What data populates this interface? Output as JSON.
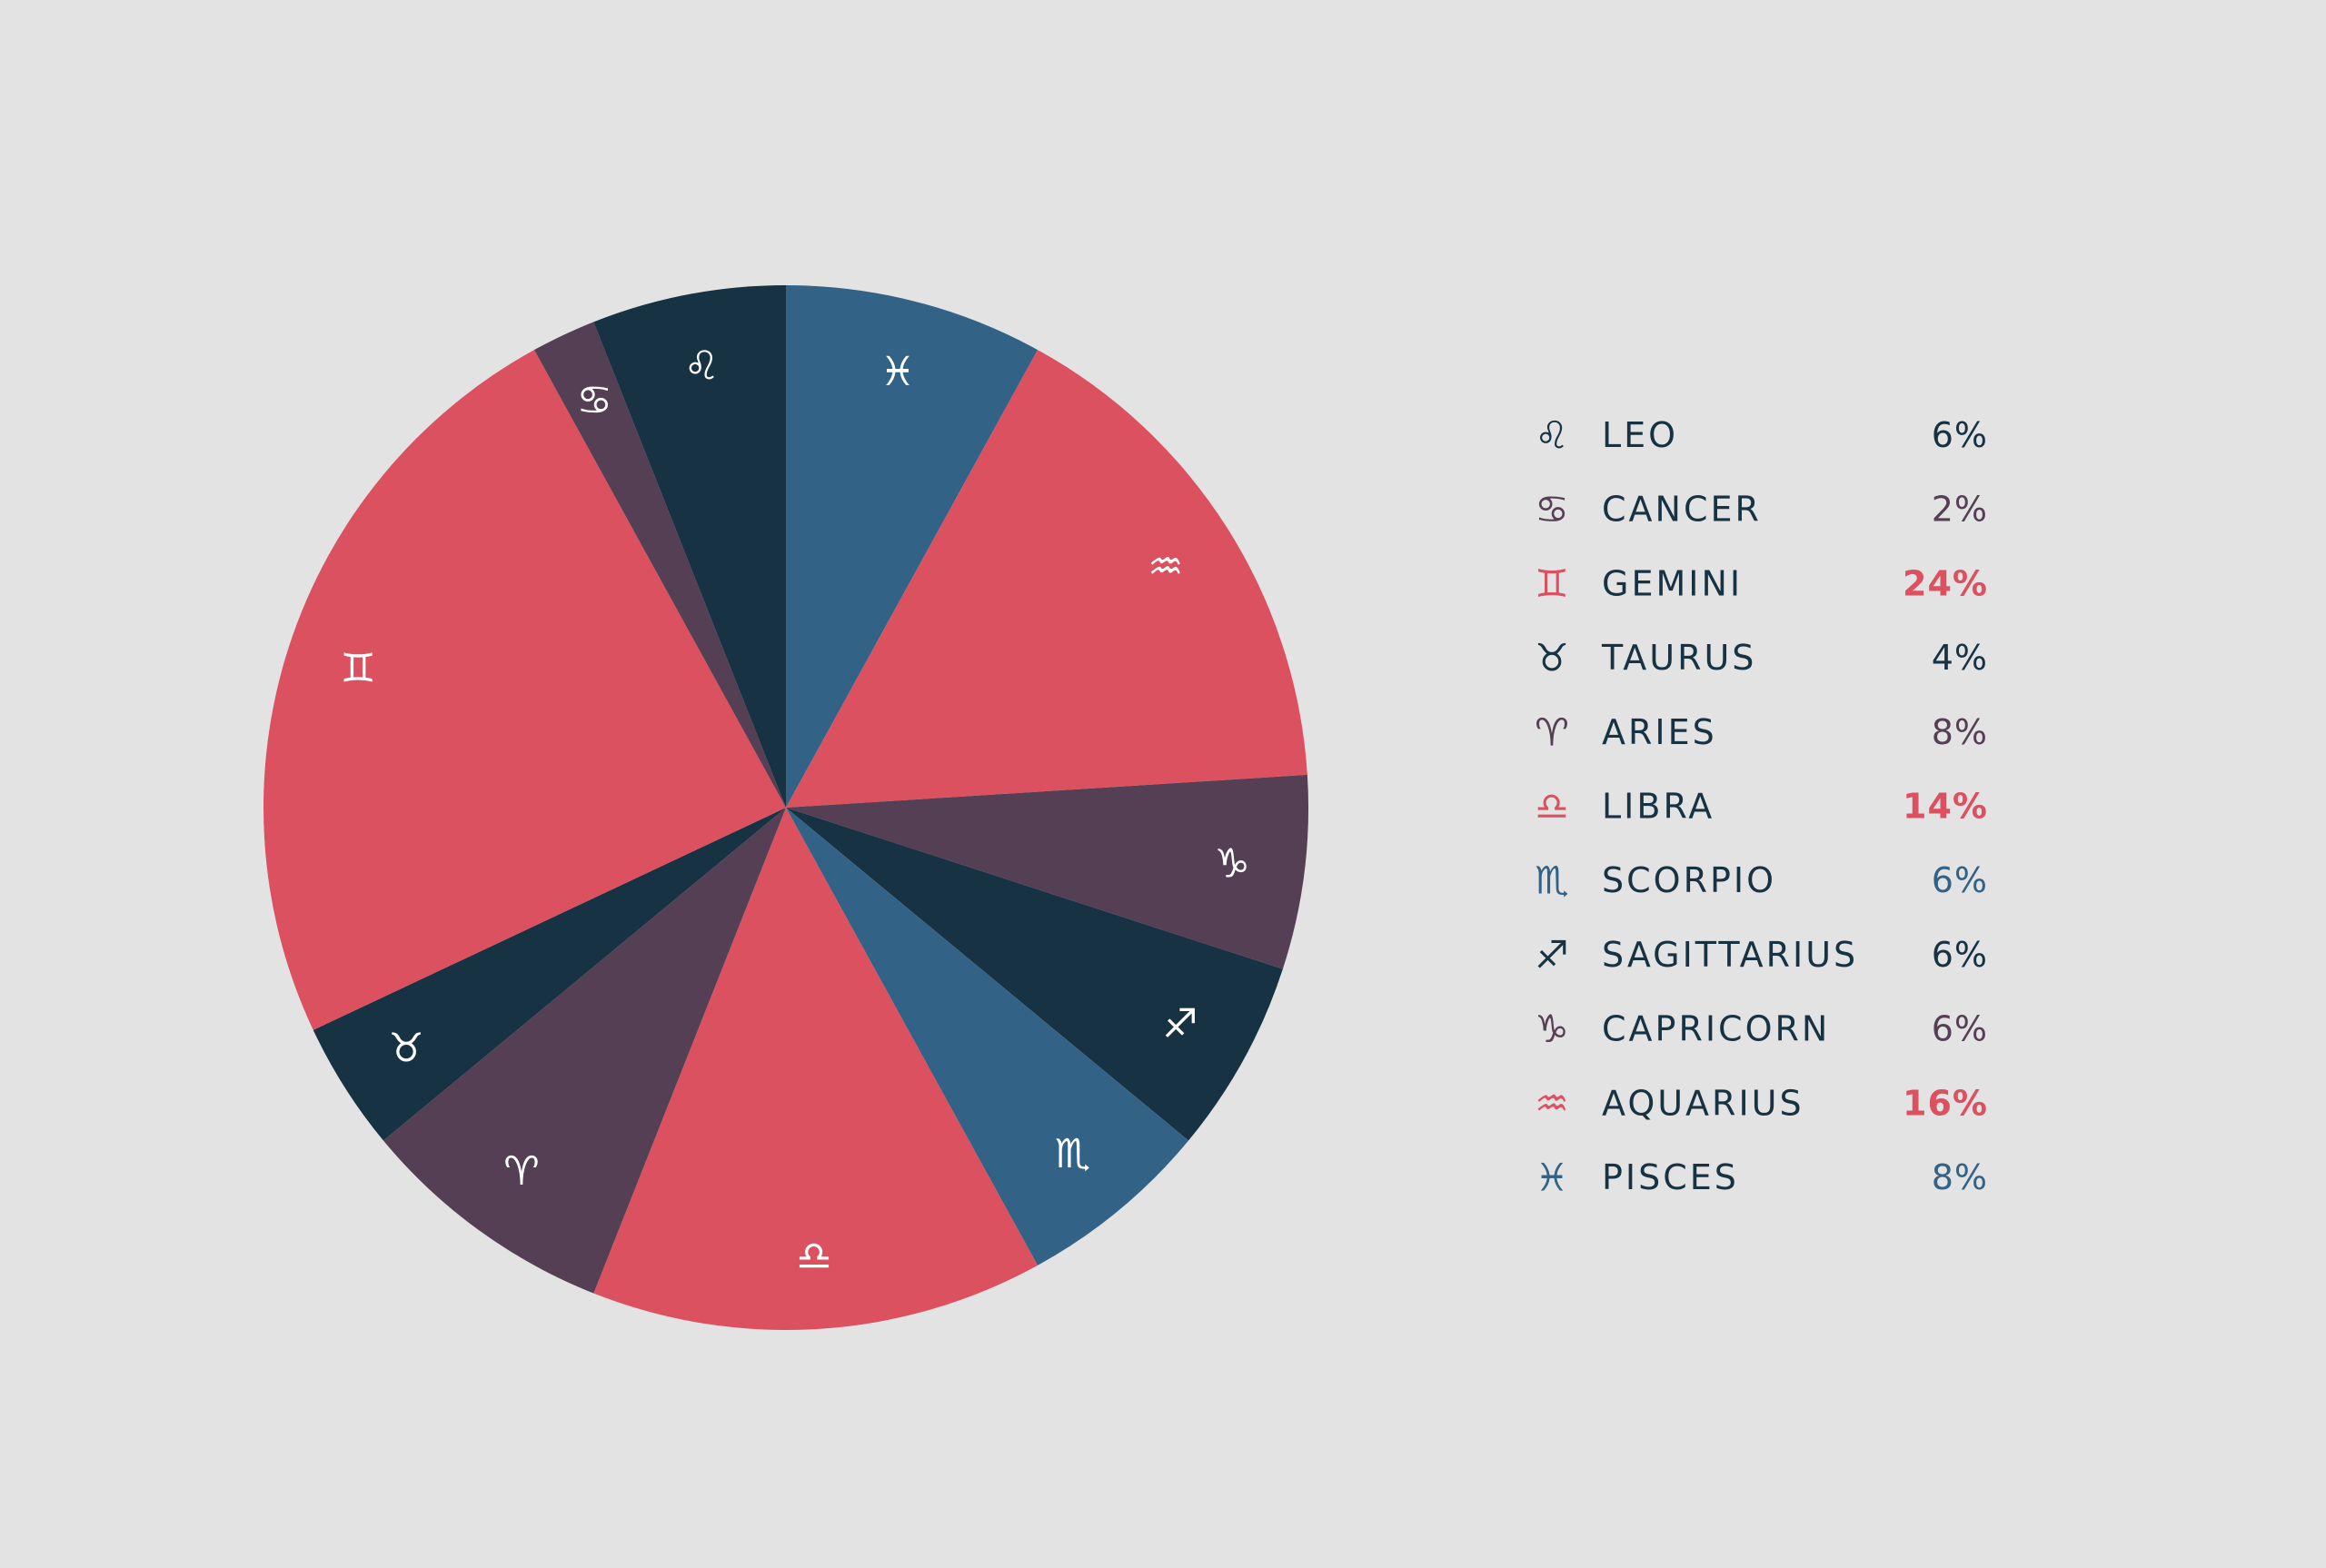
{
  "colors": {
    "background": "#e4e3e4",
    "red": "#dc5160",
    "navy": "#173242",
    "plum": "#553f54",
    "blue": "#326387",
    "glyph_on_slice": "#ffffff"
  },
  "chart_data": {
    "type": "pie",
    "start": "12 o'clock, clockwise",
    "slices": [
      {
        "label": "PISCES",
        "symbol": "♓︎",
        "icon": "pisces-icon",
        "value": 8,
        "display": "8%",
        "color": "#326387",
        "highlight": false
      },
      {
        "label": "AQUARIUS",
        "symbol": "♒︎",
        "icon": "aquarius-icon",
        "value": 16,
        "display": "16%",
        "color": "#dc5160",
        "highlight": true
      },
      {
        "label": "CAPRICORN",
        "symbol": "♑︎",
        "icon": "capricorn-icon",
        "value": 6,
        "display": "6%",
        "color": "#553f54",
        "highlight": false
      },
      {
        "label": "SAGITTARIUS",
        "symbol": "♐︎",
        "icon": "sagittarius-icon",
        "value": 6,
        "display": "6%",
        "color": "#173242",
        "highlight": false
      },
      {
        "label": "SCORPIO",
        "symbol": "♏︎",
        "icon": "scorpio-icon",
        "value": 6,
        "display": "6%",
        "color": "#326387",
        "highlight": false
      },
      {
        "label": "LIBRA",
        "symbol": "♎︎",
        "icon": "libra-icon",
        "value": 14,
        "display": "14%",
        "color": "#dc5160",
        "highlight": true
      },
      {
        "label": "ARIES",
        "symbol": "♈︎",
        "icon": "aries-icon",
        "value": 8,
        "display": "8%",
        "color": "#553f54",
        "highlight": false
      },
      {
        "label": "TAURUS",
        "symbol": "♉︎",
        "icon": "taurus-icon",
        "value": 4,
        "display": "4%",
        "color": "#173242",
        "highlight": false
      },
      {
        "label": "GEMINI",
        "symbol": "♊︎",
        "icon": "gemini-icon",
        "value": 24,
        "display": "24%",
        "color": "#dc5160",
        "highlight": true
      },
      {
        "label": "CANCER",
        "symbol": "♋︎",
        "icon": "cancer-icon",
        "value": 2,
        "display": "2%",
        "color": "#553f54",
        "highlight": false
      },
      {
        "label": "LEO",
        "symbol": "♌︎",
        "icon": "leo-icon",
        "value": 6,
        "display": "6%",
        "color": "#173242",
        "highlight": false
      }
    ],
    "legend": {
      "placement": "right",
      "order": [
        "LEO",
        "CANCER",
        "GEMINI",
        "TAURUS",
        "ARIES",
        "LIBRA",
        "SCORPIO",
        "SAGITTARIUS",
        "CAPRICORN",
        "AQUARIUS",
        "PISCES"
      ]
    }
  }
}
